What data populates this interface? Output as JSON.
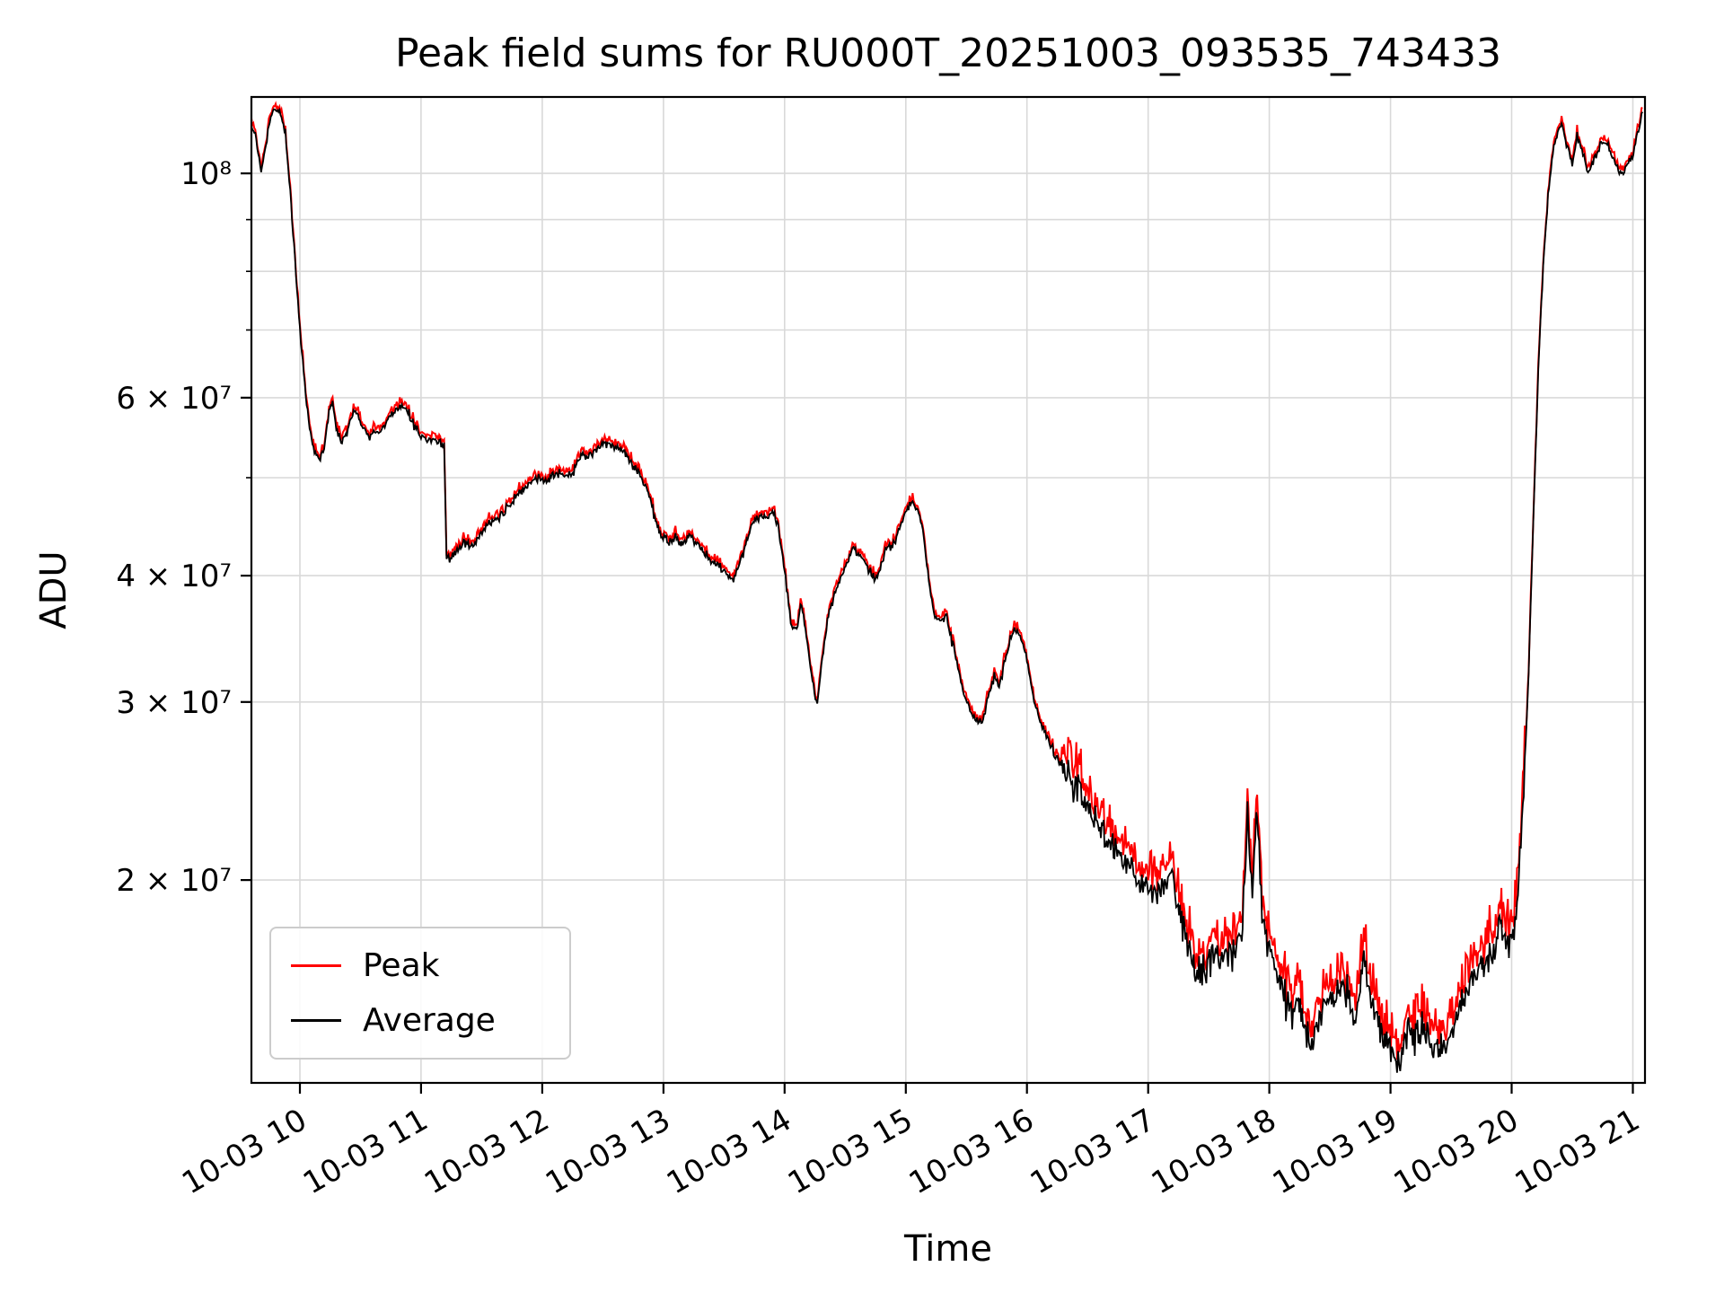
{
  "figure": {
    "background": "#ffffff"
  },
  "chart_data": {
    "type": "line",
    "title": "Peak field sums for RU000T_20251003_093535_743433",
    "xlabel": "Time",
    "ylabel": "ADU",
    "y_scale": "log",
    "grid": true,
    "grid_color": "#d9d9d9",
    "y_range": [
      12600000.0,
      119000000.0
    ],
    "x_range": [
      9.6,
      21.1
    ],
    "x_ticks": [
      {
        "value": 10,
        "label": "10-03 10"
      },
      {
        "value": 11,
        "label": "10-03 11"
      },
      {
        "value": 12,
        "label": "10-03 12"
      },
      {
        "value": 13,
        "label": "10-03 13"
      },
      {
        "value": 14,
        "label": "10-03 14"
      },
      {
        "value": 15,
        "label": "10-03 15"
      },
      {
        "value": 16,
        "label": "10-03 16"
      },
      {
        "value": 17,
        "label": "10-03 17"
      },
      {
        "value": 18,
        "label": "10-03 18"
      },
      {
        "value": 19,
        "label": "10-03 19"
      },
      {
        "value": 20,
        "label": "10-03 20"
      },
      {
        "value": 21,
        "label": "10-03 21"
      }
    ],
    "y_ticks_labeled": [
      {
        "value": 100000000.0,
        "label": "10⁸"
      },
      {
        "value": 60000000.0,
        "label": "6 × 10⁷"
      },
      {
        "value": 40000000.0,
        "label": "4 × 10⁷"
      },
      {
        "value": 30000000.0,
        "label": "3 × 10⁷"
      },
      {
        "value": 20000000.0,
        "label": "2 × 10⁷"
      }
    ],
    "y_gridlines": [
      20000000.0,
      30000000.0,
      40000000.0,
      50000000.0,
      60000000.0,
      70000000.0,
      80000000.0,
      90000000.0,
      100000000.0
    ],
    "legend": {
      "position": "lower-left",
      "entries": [
        "Peak",
        "Average"
      ]
    },
    "series": [
      {
        "name": "Peak",
        "color": "#ff0000"
      },
      {
        "name": "Average",
        "color": "#000000"
      }
    ],
    "average_points": [
      [
        9.6,
        112000000.0
      ],
      [
        9.64,
        108000000.0
      ],
      [
        9.68,
        101000000.0
      ],
      [
        9.72,
        107000000.0
      ],
      [
        9.76,
        114000000.0
      ],
      [
        9.8,
        116000000.0
      ],
      [
        9.84,
        115000000.0
      ],
      [
        9.88,
        110000000.0
      ],
      [
        9.92,
        96000000.0
      ],
      [
        9.96,
        82000000.0
      ],
      [
        10.0,
        70000000.0
      ],
      [
        10.04,
        62000000.0
      ],
      [
        10.08,
        56000000.0
      ],
      [
        10.12,
        52800000.0
      ],
      [
        10.16,
        52200000.0
      ],
      [
        10.2,
        53500000.0
      ],
      [
        10.24,
        58000000.0
      ],
      [
        10.27,
        59500000.0
      ],
      [
        10.3,
        56000000.0
      ],
      [
        10.34,
        54500000.0
      ],
      [
        10.38,
        55000000.0
      ],
      [
        10.42,
        57000000.0
      ],
      [
        10.45,
        58500000.0
      ],
      [
        10.48,
        57500000.0
      ],
      [
        10.52,
        56000000.0
      ],
      [
        10.56,
        55000000.0
      ],
      [
        10.6,
        55200000.0
      ],
      [
        10.65,
        55500000.0
      ],
      [
        10.7,
        56500000.0
      ],
      [
        10.75,
        57800000.0
      ],
      [
        10.8,
        58500000.0
      ],
      [
        10.85,
        58800000.0
      ],
      [
        10.9,
        57800000.0
      ],
      [
        10.95,
        56200000.0
      ],
      [
        11.0,
        55000000.0
      ],
      [
        11.05,
        54500000.0
      ],
      [
        11.1,
        54400000.0
      ],
      [
        11.15,
        54200000.0
      ],
      [
        11.19,
        54000000.0
      ],
      [
        11.21,
        41500000.0
      ],
      [
        11.26,
        41800000.0
      ],
      [
        11.32,
        42800000.0
      ],
      [
        11.38,
        43200000.0
      ],
      [
        11.42,
        42800000.0
      ],
      [
        11.47,
        43500000.0
      ],
      [
        11.52,
        44500000.0
      ],
      [
        11.57,
        45200000.0
      ],
      [
        11.62,
        45600000.0
      ],
      [
        11.67,
        46000000.0
      ],
      [
        11.72,
        46800000.0
      ],
      [
        11.78,
        47800000.0
      ],
      [
        11.84,
        48800000.0
      ],
      [
        11.9,
        49400000.0
      ],
      [
        11.96,
        50000000.0
      ],
      [
        12.02,
        49600000.0
      ],
      [
        12.08,
        50200000.0
      ],
      [
        12.14,
        50500000.0
      ],
      [
        12.2,
        50000000.0
      ],
      [
        12.26,
        50600000.0
      ],
      [
        12.32,
        52800000.0
      ],
      [
        12.38,
        52400000.0
      ],
      [
        12.44,
        53200000.0
      ],
      [
        12.5,
        54400000.0
      ],
      [
        12.56,
        54000000.0
      ],
      [
        12.62,
        53600000.0
      ],
      [
        12.68,
        53000000.0
      ],
      [
        12.74,
        51600000.0
      ],
      [
        12.8,
        50500000.0
      ],
      [
        12.86,
        49000000.0
      ],
      [
        12.92,
        46000000.0
      ],
      [
        12.98,
        44000000.0
      ],
      [
        13.04,
        43200000.0
      ],
      [
        13.1,
        43600000.0
      ],
      [
        13.16,
        43000000.0
      ],
      [
        13.22,
        43800000.0
      ],
      [
        13.28,
        43000000.0
      ],
      [
        13.34,
        42000000.0
      ],
      [
        13.4,
        41600000.0
      ],
      [
        13.46,
        41000000.0
      ],
      [
        13.52,
        40000000.0
      ],
      [
        13.57,
        39600000.0
      ],
      [
        13.62,
        40800000.0
      ],
      [
        13.68,
        43000000.0
      ],
      [
        13.74,
        45200000.0
      ],
      [
        13.8,
        46000000.0
      ],
      [
        13.85,
        45500000.0
      ],
      [
        13.9,
        46500000.0
      ],
      [
        13.94,
        45000000.0
      ],
      [
        14.0,
        40500000.0
      ],
      [
        14.05,
        36000000.0
      ],
      [
        14.1,
        35500000.0
      ],
      [
        14.14,
        37500000.0
      ],
      [
        14.18,
        35000000.0
      ],
      [
        14.23,
        31500000.0
      ],
      [
        14.27,
        29700000.0
      ],
      [
        14.32,
        34000000.0
      ],
      [
        14.37,
        37000000.0
      ],
      [
        14.42,
        38500000.0
      ],
      [
        14.47,
        40000000.0
      ],
      [
        14.52,
        41500000.0
      ],
      [
        14.56,
        42800000.0
      ],
      [
        14.6,
        42200000.0
      ],
      [
        14.65,
        41500000.0
      ],
      [
        14.7,
        40500000.0
      ],
      [
        14.74,
        39600000.0
      ],
      [
        14.79,
        40500000.0
      ],
      [
        14.84,
        42500000.0
      ],
      [
        14.89,
        43000000.0
      ],
      [
        14.94,
        44000000.0
      ],
      [
        14.99,
        46000000.0
      ],
      [
        15.04,
        47200000.0
      ],
      [
        15.09,
        46800000.0
      ],
      [
        15.14,
        44500000.0
      ],
      [
        15.19,
        39500000.0
      ],
      [
        15.24,
        36500000.0
      ],
      [
        15.29,
        36000000.0
      ],
      [
        15.33,
        36600000.0
      ],
      [
        15.38,
        34500000.0
      ],
      [
        15.43,
        32500000.0
      ],
      [
        15.48,
        30500000.0
      ],
      [
        15.53,
        29500000.0
      ],
      [
        15.58,
        28800000.0
      ],
      [
        15.63,
        28500000.0
      ],
      [
        15.68,
        30500000.0
      ],
      [
        15.73,
        31800000.0
      ],
      [
        15.77,
        31000000.0
      ],
      [
        15.82,
        33000000.0
      ],
      [
        15.87,
        35000000.0
      ],
      [
        15.92,
        35400000.0
      ],
      [
        15.96,
        34500000.0
      ],
      [
        16.0,
        33000000.0
      ],
      [
        16.05,
        30500000.0
      ],
      [
        16.1,
        29000000.0
      ],
      [
        16.16,
        27800000.0
      ],
      [
        16.22,
        26800000.0
      ],
      [
        16.28,
        26000000.0
      ],
      [
        16.34,
        25200000.0
      ],
      [
        16.4,
        24800000.0
      ],
      [
        16.46,
        24200000.0
      ],
      [
        16.52,
        23500000.0
      ],
      [
        16.58,
        22800000.0
      ],
      [
        16.64,
        22200000.0
      ],
      [
        16.7,
        21800000.0
      ],
      [
        16.76,
        21200000.0
      ],
      [
        16.82,
        20800000.0
      ],
      [
        16.88,
        20200000.0
      ],
      [
        16.94,
        20000000.0
      ],
      [
        17.0,
        19700000.0
      ],
      [
        17.06,
        19400000.0
      ],
      [
        17.12,
        19700000.0
      ],
      [
        17.18,
        20400000.0
      ],
      [
        17.24,
        19000000.0
      ],
      [
        17.3,
        17800000.0
      ],
      [
        17.36,
        16800000.0
      ],
      [
        17.42,
        16200000.0
      ],
      [
        17.48,
        16300000.0
      ],
      [
        17.54,
        17000000.0
      ],
      [
        17.6,
        16600000.0
      ],
      [
        17.66,
        16800000.0
      ],
      [
        17.72,
        17000000.0
      ],
      [
        17.78,
        17800000.0
      ],
      [
        17.82,
        23500000.0
      ],
      [
        17.86,
        19500000.0
      ],
      [
        17.9,
        23000000.0
      ],
      [
        17.94,
        18500000.0
      ],
      [
        18.0,
        17200000.0
      ],
      [
        18.06,
        16200000.0
      ],
      [
        18.12,
        15200000.0
      ],
      [
        18.18,
        14800000.0
      ],
      [
        18.24,
        15200000.0
      ],
      [
        18.3,
        14200000.0
      ],
      [
        18.36,
        13800000.0
      ],
      [
        18.42,
        14600000.0
      ],
      [
        18.48,
        15400000.0
      ],
      [
        18.54,
        15000000.0
      ],
      [
        18.6,
        15800000.0
      ],
      [
        18.66,
        15200000.0
      ],
      [
        18.72,
        14500000.0
      ],
      [
        18.78,
        16800000.0
      ],
      [
        18.84,
        15000000.0
      ],
      [
        18.9,
        14200000.0
      ],
      [
        18.96,
        14000000.0
      ],
      [
        19.02,
        13500000.0
      ],
      [
        19.08,
        13200000.0
      ],
      [
        19.14,
        14200000.0
      ],
      [
        19.2,
        14000000.0
      ],
      [
        19.26,
        14200000.0
      ],
      [
        19.32,
        13800000.0
      ],
      [
        19.38,
        13600000.0
      ],
      [
        19.44,
        13800000.0
      ],
      [
        19.5,
        14200000.0
      ],
      [
        19.56,
        14800000.0
      ],
      [
        19.62,
        15500000.0
      ],
      [
        19.68,
        16000000.0
      ],
      [
        19.74,
        16500000.0
      ],
      [
        19.8,
        16800000.0
      ],
      [
        19.86,
        17000000.0
      ],
      [
        19.9,
        18200000.0
      ],
      [
        19.96,
        17200000.0
      ],
      [
        20.02,
        17800000.0
      ],
      [
        20.06,
        20500000.0
      ],
      [
        20.1,
        24500000.0
      ],
      [
        20.14,
        32000000.0
      ],
      [
        20.18,
        46000000.0
      ],
      [
        20.22,
        64000000.0
      ],
      [
        20.26,
        81000000.0
      ],
      [
        20.3,
        95000000.0
      ],
      [
        20.34,
        105000000.0
      ],
      [
        20.38,
        110000000.0
      ],
      [
        20.42,
        111000000.0
      ],
      [
        20.46,
        106000000.0
      ],
      [
        20.5,
        102000000.0
      ],
      [
        20.54,
        109000000.0
      ],
      [
        20.58,
        105000000.0
      ],
      [
        20.63,
        100000000.0
      ],
      [
        20.68,
        103000000.0
      ],
      [
        20.73,
        107000000.0
      ],
      [
        20.78,
        108000000.0
      ],
      [
        20.83,
        104000000.0
      ],
      [
        20.88,
        101000000.0
      ],
      [
        20.93,
        100000000.0
      ],
      [
        20.98,
        103000000.0
      ],
      [
        21.03,
        108000000.0
      ],
      [
        21.08,
        115000000.0
      ]
    ],
    "noise": {
      "seed": 12,
      "threshold": 26000000.0,
      "frac_high": 0.005,
      "frac_low": 0.02,
      "peak_offset_high": 0.007,
      "peak_offset_low": 0.03,
      "peak_spike_high": 0.012,
      "peak_spike_low": 0.06
    }
  }
}
